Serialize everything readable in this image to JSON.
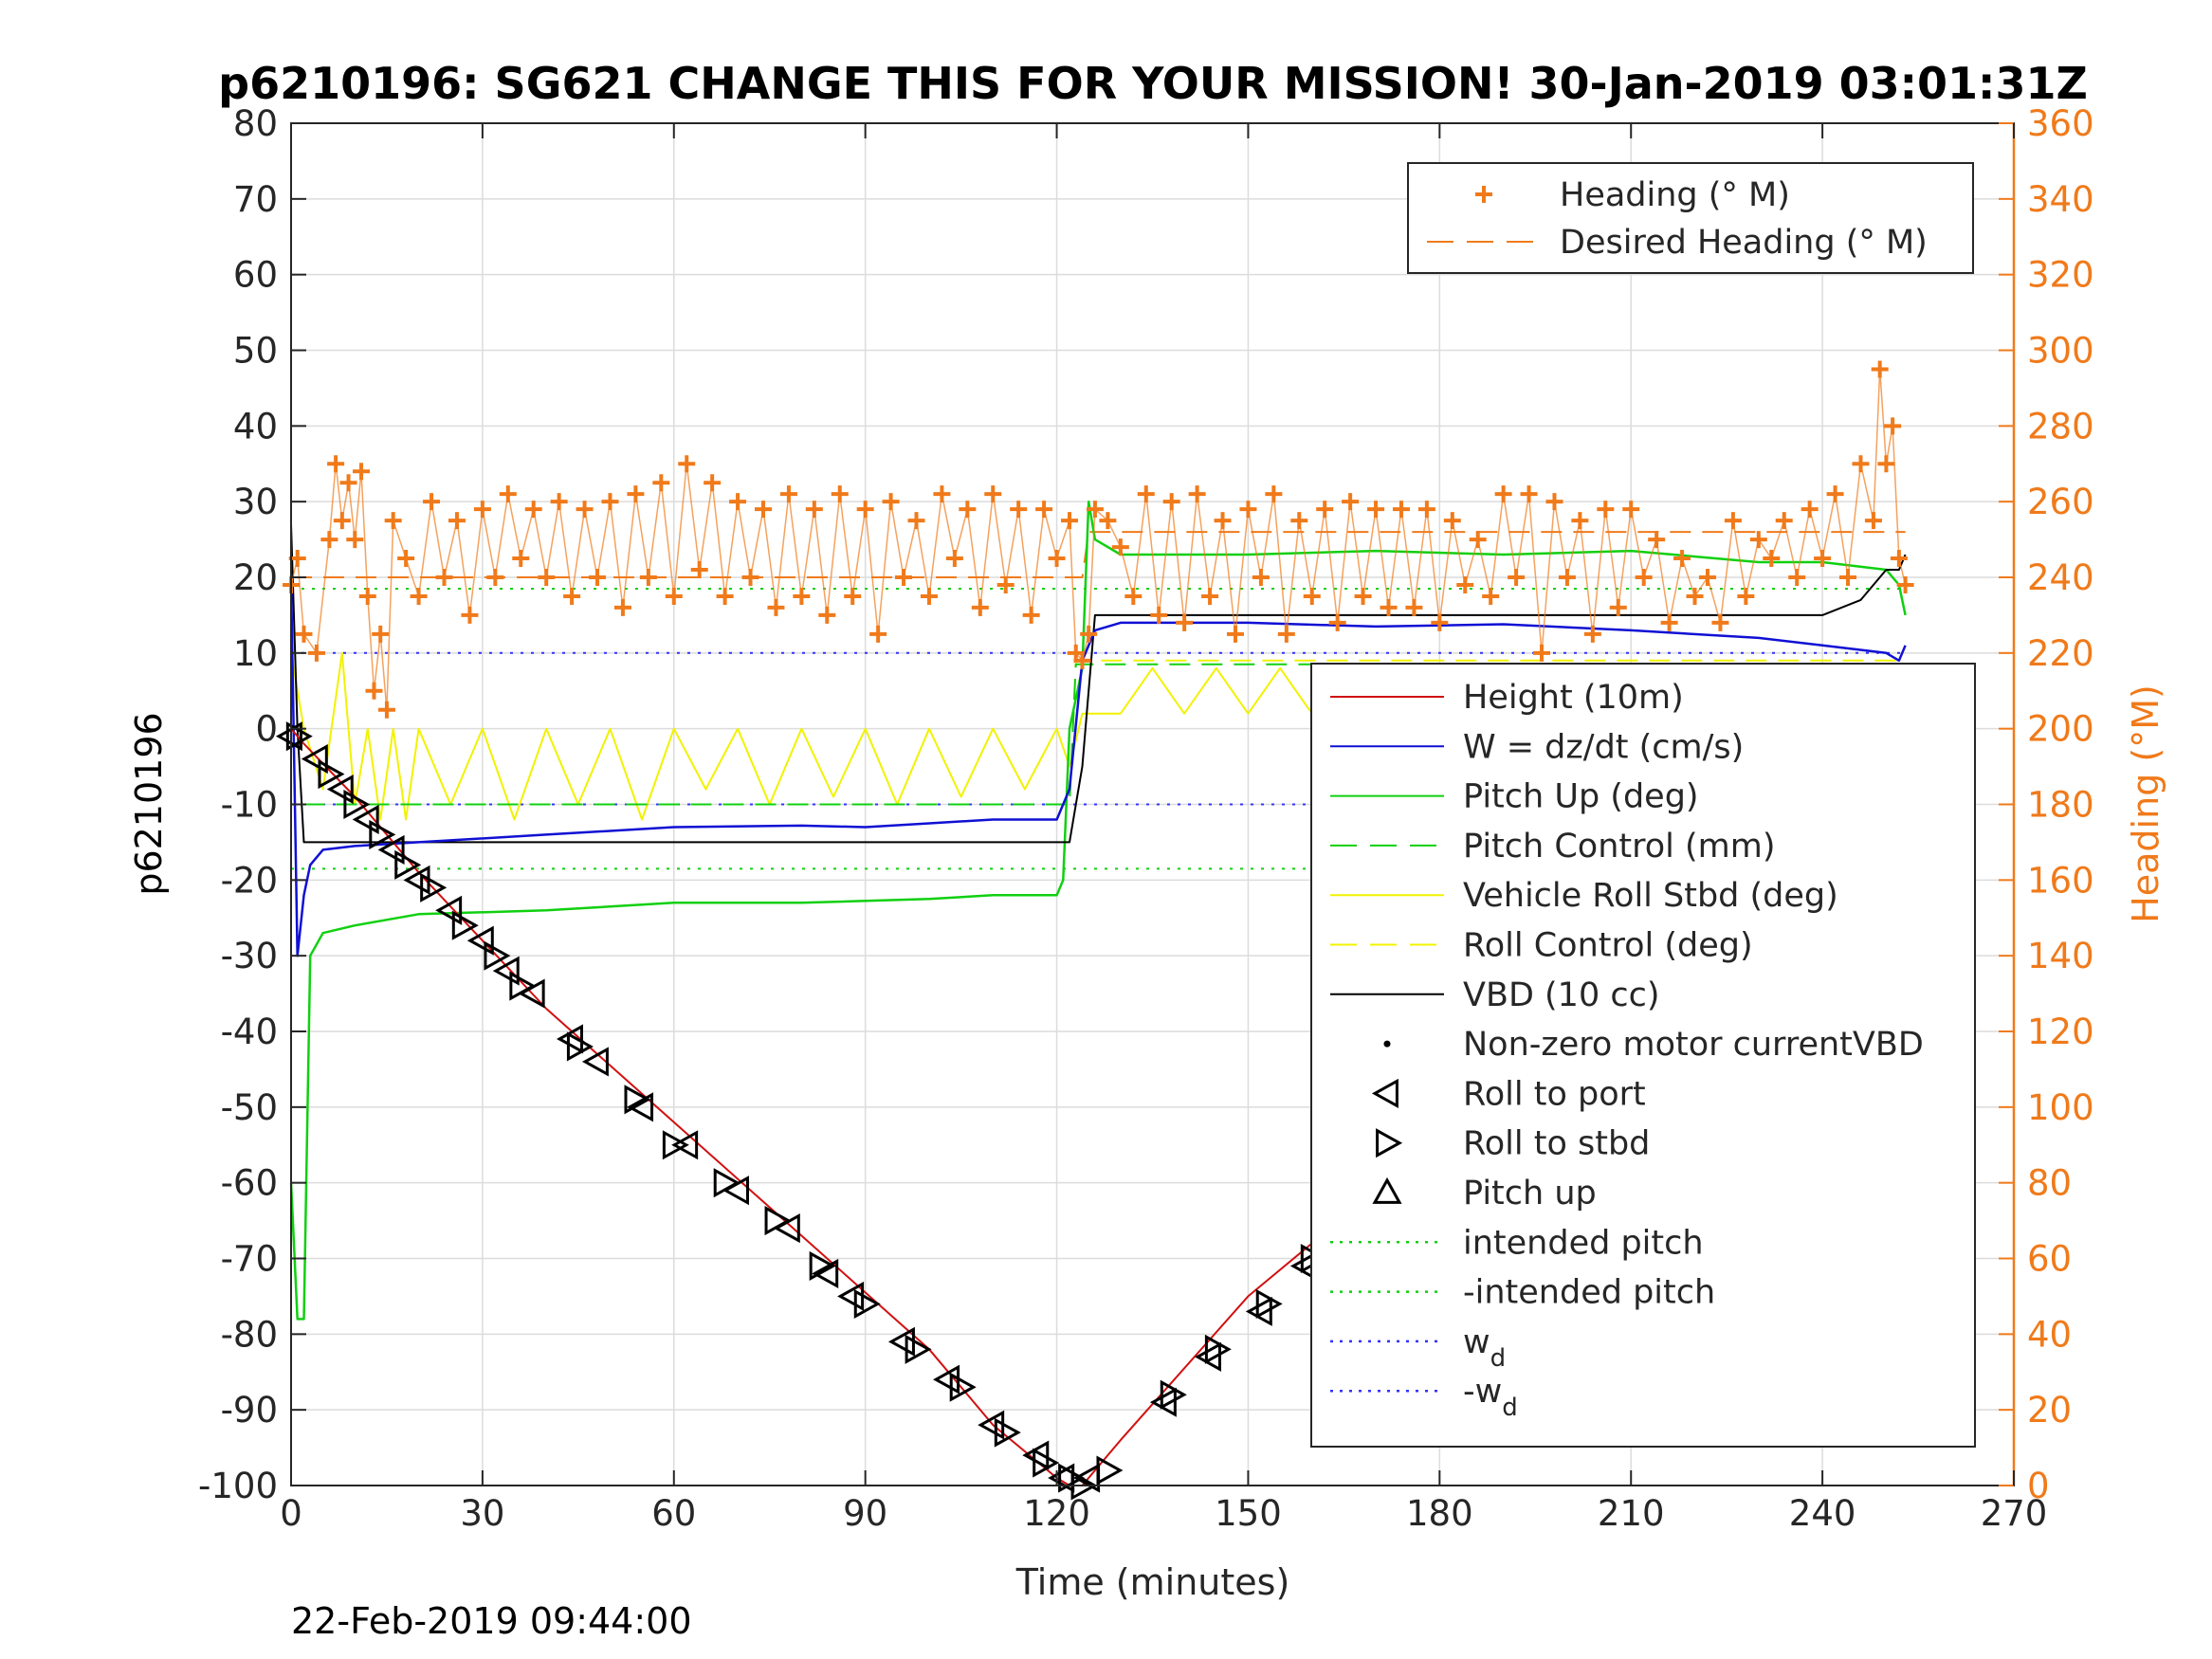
{
  "chart_data": {
    "type": "line",
    "title": "p6210196: SG621 CHANGE THIS FOR YOUR MISSION! 30-Jan-2019 03:01:31Z",
    "xlabel": "Time (minutes)",
    "ylabel": "p6210196",
    "ylabel_right": "Heading (°M)",
    "footer": "22-Feb-2019 09:44:00",
    "xlim": [
      0,
      270
    ],
    "ylim": [
      -100,
      80
    ],
    "ylim_right": [
      0,
      360
    ],
    "x_ticks": [
      "0",
      "30",
      "60",
      "90",
      "120",
      "150",
      "180",
      "210",
      "240",
      "270"
    ],
    "y_ticks": [
      "80",
      "70",
      "60",
      "50",
      "40",
      "30",
      "20",
      "10",
      "0",
      "-10",
      "-20",
      "-30",
      "-40",
      "-50",
      "-60",
      "-70",
      "-80",
      "-90",
      "-100"
    ],
    "y_ticks_right": [
      "360",
      "340",
      "320",
      "300",
      "280",
      "260",
      "240",
      "220",
      "200",
      "180",
      "160",
      "140",
      "120",
      "100",
      "80",
      "60",
      "40",
      "20",
      "0"
    ],
    "grid": true,
    "colors": {
      "accent_right": "#f07a1a",
      "height": "#d11010",
      "w": "#1010d4",
      "pitch": "#10d010",
      "roll": "#f2f200",
      "vbd": "#000000",
      "wd": "#3333ff"
    },
    "legend_right_axis": {
      "placement": "top-right",
      "entries": [
        {
          "label": "Heading (° M)",
          "style": "plus",
          "color": "#f07a1a"
        },
        {
          "label": "Desired Heading (° M)",
          "style": "dashed",
          "color": "#f07a1a"
        }
      ]
    },
    "legend_left_axis": {
      "placement": "lower-right",
      "entries": [
        {
          "label": "Height (10m)",
          "style": "solid",
          "color": "#d11010"
        },
        {
          "label": "W = dz/dt (cm/s)",
          "style": "solid",
          "color": "#1010d4"
        },
        {
          "label": "Pitch Up (deg)",
          "style": "solid",
          "color": "#10d010"
        },
        {
          "label": "Pitch Control (mm)",
          "style": "dashed",
          "color": "#10d010"
        },
        {
          "label": "Vehicle Roll Stbd (deg)",
          "style": "solid",
          "color": "#f2f200"
        },
        {
          "label": "Roll Control (deg)",
          "style": "dashed",
          "color": "#f2f200"
        },
        {
          "label": "VBD (10 cc)",
          "style": "solid",
          "color": "#000000"
        },
        {
          "label": "Non-zero motor currentVBD",
          "style": "dot",
          "color": "#000000"
        },
        {
          "label": "Roll to port",
          "style": "tri-left",
          "color": "#000000"
        },
        {
          "label": "Roll to stbd",
          "style": "tri-right",
          "color": "#000000"
        },
        {
          "label": "Pitch up",
          "style": "tri-up",
          "color": "#000000"
        },
        {
          "label": "intended pitch",
          "style": "dotted",
          "color": "#10d010"
        },
        {
          "label": "-intended pitch",
          "style": "dotted",
          "color": "#10d010"
        },
        {
          "label": "w",
          "sub": "d",
          "style": "dotted",
          "color": "#3333ff"
        },
        {
          "label": "-w",
          "sub": "d",
          "style": "dotted",
          "color": "#3333ff"
        }
      ]
    },
    "series": [
      {
        "name": "Height (10m)",
        "axis": "left",
        "x": [
          0,
          2,
          10,
          20,
          40,
          60,
          80,
          100,
          110,
          120,
          122,
          124,
          126,
          130,
          150,
          170,
          190,
          210,
          230,
          250,
          253
        ],
        "y": [
          0,
          -2,
          -9,
          -19,
          -37,
          -52,
          -67,
          -82,
          -92,
          -99,
          -100,
          -100,
          -98,
          -94,
          -75,
          -61,
          -45,
          -30,
          -14,
          -3,
          -1
        ]
      },
      {
        "name": "W = dz/dt (cm/s)",
        "axis": "left",
        "x": [
          0,
          1,
          2,
          3,
          5,
          10,
          20,
          40,
          60,
          80,
          90,
          100,
          110,
          120,
          122,
          124,
          126,
          130,
          150,
          170,
          190,
          210,
          230,
          240,
          250,
          252,
          253
        ],
        "y": [
          20,
          -30,
          -22,
          -18,
          -16,
          -15.5,
          -15,
          -14,
          -13,
          -12.8,
          -13,
          -12.5,
          -12,
          -12,
          -8,
          9,
          13,
          14,
          14,
          13.5,
          13.8,
          13,
          12,
          11,
          10,
          9,
          11
        ]
      },
      {
        "name": "Pitch Up (deg)",
        "axis": "left",
        "x": [
          0,
          1,
          2,
          3,
          5,
          10,
          20,
          40,
          60,
          80,
          100,
          110,
          120,
          121,
          122,
          124,
          125,
          126,
          130,
          150,
          170,
          190,
          210,
          230,
          240,
          250,
          252,
          253
        ],
        "y": [
          -60,
          -78,
          -78,
          -30,
          -27,
          -26,
          -24.5,
          -24,
          -23,
          -23,
          -22.5,
          -22,
          -22,
          -20,
          0,
          8,
          30,
          25,
          23,
          23,
          23.5,
          23,
          23.5,
          22,
          22,
          21,
          19,
          15
        ]
      },
      {
        "name": "Pitch Control (mm)",
        "axis": "left",
        "x": [
          2,
          122,
          123,
          253
        ],
        "y": [
          -10,
          -10,
          8.5,
          8.5
        ]
      },
      {
        "name": "Vehicle Roll Stbd (deg)",
        "axis": "left",
        "x": [
          0,
          2,
          5,
          8,
          10,
          12,
          14,
          16,
          18,
          20,
          25,
          30,
          35,
          40,
          45,
          50,
          55,
          60,
          65,
          70,
          75,
          80,
          85,
          90,
          95,
          100,
          105,
          110,
          115,
          120,
          122,
          124,
          130,
          135,
          140,
          145,
          150,
          155,
          160,
          165,
          170,
          175,
          180,
          185,
          190,
          195,
          200,
          205,
          210,
          215,
          220,
          225,
          230,
          235,
          240,
          245,
          250,
          253
        ],
        "y": [
          10,
          0,
          -8,
          10,
          -10,
          0,
          -12,
          0,
          -12,
          0,
          -10,
          0,
          -12,
          0,
          -10,
          0,
          -12,
          0,
          -8,
          0,
          -10,
          0,
          -9,
          0,
          -10,
          0,
          -9,
          0,
          -8,
          0,
          -5,
          2,
          2,
          8,
          2,
          8,
          2,
          8,
          2,
          8,
          2,
          8,
          2,
          8,
          2,
          8,
          2,
          8,
          2,
          8,
          2,
          3,
          8,
          -10,
          8,
          -12,
          8,
          5
        ]
      },
      {
        "name": "Roll Control (deg)",
        "axis": "left",
        "x": [
          2,
          122,
          123,
          253
        ],
        "y": [
          -10,
          -10,
          9,
          9
        ]
      },
      {
        "name": "VBD (10 cc)",
        "axis": "left",
        "x": [
          0,
          1,
          2,
          122,
          124,
          126,
          240,
          246,
          248,
          250,
          252,
          253
        ],
        "y": [
          27,
          0,
          -15,
          -15,
          -5,
          15,
          15,
          17,
          19,
          21,
          21,
          23
        ]
      },
      {
        "name": "intended pitch",
        "axis": "left",
        "x": [
          0,
          253
        ],
        "y": [
          18.5,
          18.5
        ]
      },
      {
        "name": "-intended pitch",
        "axis": "left",
        "x": [
          0,
          253
        ],
        "y": [
          -18.5,
          -18.5
        ]
      },
      {
        "name": "w_d",
        "axis": "left",
        "x": [
          0,
          253
        ],
        "y": [
          10,
          10
        ]
      },
      {
        "name": "-w_d",
        "axis": "left",
        "x": [
          0,
          253
        ],
        "y": [
          -10,
          -10
        ]
      },
      {
        "name": "Heading (° M)",
        "axis": "right",
        "x": [
          0,
          1,
          2,
          4,
          6,
          7,
          8,
          9,
          10,
          11,
          12,
          13,
          14,
          15,
          16,
          18,
          20,
          22,
          24,
          26,
          28,
          30,
          32,
          34,
          36,
          38,
          40,
          42,
          44,
          46,
          48,
          50,
          52,
          54,
          56,
          58,
          60,
          62,
          64,
          66,
          68,
          70,
          72,
          74,
          76,
          78,
          80,
          82,
          84,
          86,
          88,
          90,
          92,
          94,
          96,
          98,
          100,
          102,
          104,
          106,
          108,
          110,
          112,
          114,
          116,
          118,
          120,
          122,
          123,
          124,
          125,
          126,
          128,
          130,
          132,
          134,
          136,
          138,
          140,
          142,
          144,
          146,
          148,
          150,
          152,
          154,
          156,
          158,
          160,
          162,
          164,
          166,
          168,
          170,
          172,
          174,
          176,
          178,
          180,
          182,
          184,
          186,
          188,
          190,
          192,
          194,
          196,
          198,
          200,
          202,
          204,
          206,
          208,
          210,
          212,
          214,
          216,
          218,
          220,
          222,
          224,
          226,
          228,
          230,
          232,
          234,
          236,
          238,
          240,
          242,
          244,
          246,
          248,
          249,
          250,
          251,
          252,
          253
        ],
        "y": [
          238,
          245,
          225,
          220,
          250,
          270,
          255,
          265,
          250,
          268,
          235,
          210,
          225,
          205,
          255,
          245,
          235,
          260,
          240,
          255,
          230,
          258,
          240,
          262,
          245,
          258,
          240,
          260,
          235,
          258,
          240,
          260,
          232,
          262,
          240,
          265,
          235,
          270,
          242,
          265,
          235,
          260,
          240,
          258,
          232,
          262,
          235,
          258,
          230,
          262,
          235,
          258,
          225,
          260,
          240,
          255,
          235,
          262,
          245,
          258,
          232,
          262,
          238,
          258,
          230,
          258,
          245,
          255,
          220,
          218,
          225,
          258,
          255,
          248,
          235,
          262,
          230,
          260,
          228,
          262,
          235,
          255,
          225,
          258,
          240,
          262,
          225,
          255,
          235,
          258,
          228,
          260,
          235,
          258,
          232,
          258,
          232,
          258,
          228,
          255,
          238,
          250,
          235,
          262,
          240,
          262,
          220,
          260,
          240,
          255,
          225,
          258,
          232,
          258,
          240,
          250,
          228,
          245,
          235,
          240,
          228,
          255,
          235,
          250,
          245,
          255,
          240,
          258,
          245,
          262,
          240,
          270,
          255,
          295,
          270,
          280,
          245,
          238
        ]
      },
      {
        "name": "Desired Heading (° M)",
        "axis": "right",
        "x": [
          0,
          124,
          125,
          253
        ],
        "y": [
          240,
          240,
          252,
          252
        ]
      },
      {
        "name": "Roll to port",
        "axis": "left",
        "x": [
          0,
          4,
          8,
          12,
          16,
          20,
          25,
          30,
          34,
          38,
          44,
          48,
          55,
          62,
          70,
          78,
          84,
          88,
          96,
          103,
          110,
          117,
          121,
          125,
          137,
          144,
          152,
          159,
          166,
          171,
          181,
          187,
          192,
          203,
          211,
          219,
          231,
          235,
          239,
          243,
          247,
          251
        ],
        "y": [
          -1,
          -4,
          -8,
          -12,
          -16,
          -20,
          -24,
          -28,
          -32,
          -35,
          -41,
          -44,
          -50,
          -55,
          -61,
          -66,
          -72,
          -75,
          -81,
          -86,
          -92,
          -96,
          -99,
          -99,
          -89,
          -83,
          -77,
          -71,
          -65,
          -61,
          -53,
          -47,
          -43,
          -35,
          -28,
          -21,
          -15,
          -11,
          -8,
          -6,
          -4,
          -2
        ]
      },
      {
        "name": "Roll to stbd",
        "axis": "left",
        "x": [
          1,
          6,
          10,
          14,
          18,
          22,
          27,
          32,
          36,
          45,
          54,
          60,
          68,
          76,
          83,
          90,
          98,
          105,
          112,
          118,
          122,
          124,
          128,
          138,
          145,
          153,
          160,
          168,
          173,
          182,
          190,
          201,
          210,
          220,
          230,
          236,
          241,
          246,
          250,
          253
        ],
        "y": [
          -1,
          -6,
          -10,
          -14,
          -18,
          -21,
          -26,
          -30,
          -34,
          -42,
          -49,
          -55,
          -60,
          -65,
          -71,
          -76,
          -82,
          -87,
          -93,
          -97,
          -99,
          -100,
          -98,
          -88,
          -82,
          -76,
          -70,
          -64,
          -60,
          -52,
          -46,
          -36,
          -29,
          -21,
          -15,
          -11,
          -8,
          -5,
          -3,
          -1
        ]
      }
    ]
  }
}
